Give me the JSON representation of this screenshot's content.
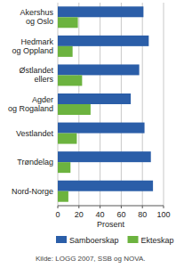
{
  "chart_data": {
    "type": "bar",
    "orientation": "horizontal",
    "categories": [
      "Akershus og Oslo",
      "Hedmark og Oppland",
      "Østlandet ellers",
      "Agder og Rogaland",
      "Vestlandet",
      "Trøndelag",
      "Nord-Norge"
    ],
    "series": [
      {
        "name": "Samboerskap",
        "color": "#2b5ea8",
        "values": [
          81,
          86,
          77,
          69,
          82,
          88,
          90
        ]
      },
      {
        "name": "Ekteskap",
        "color": "#6cb33f",
        "values": [
          19,
          14,
          23,
          31,
          18,
          12,
          10
        ]
      }
    ],
    "xlim": [
      0,
      100
    ],
    "xticks": [
      0,
      20,
      40,
      60,
      80,
      100
    ],
    "x_label": "Prosent",
    "grid": true,
    "legend": "bottom",
    "source": "Kilde: LOGG 2007, SSB og NOVA."
  }
}
